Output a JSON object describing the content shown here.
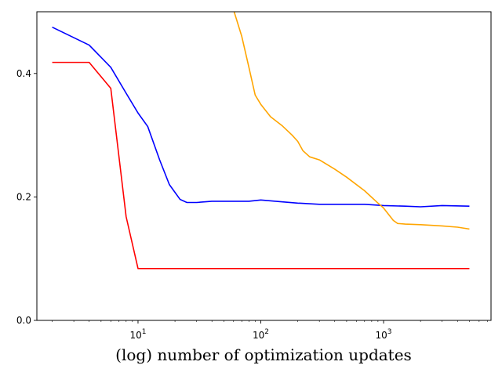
{
  "chart_data": {
    "type": "line",
    "title": "",
    "xlabel": "(log) number of optimization updates",
    "ylabel": "",
    "x_scale": "log",
    "xlim": [
      1.5,
      7500
    ],
    "ylim": [
      0,
      0.5
    ],
    "grid": false,
    "x_ticks": [
      {
        "value": 10,
        "base": "10",
        "exp": "1"
      },
      {
        "value": 100,
        "base": "10",
        "exp": "2"
      },
      {
        "value": 1000,
        "base": "10",
        "exp": "3"
      }
    ],
    "y_ticks": [
      {
        "value": 0.0,
        "label": "0.0"
      },
      {
        "value": 0.2,
        "label": "0.2"
      },
      {
        "value": 0.4,
        "label": "0.4"
      }
    ],
    "series": [
      {
        "color": "#ff0000",
        "points": [
          [
            2,
            0.418
          ],
          [
            4,
            0.418
          ],
          [
            6,
            0.376
          ],
          [
            8,
            0.168
          ],
          [
            10,
            0.084
          ],
          [
            20,
            0.084
          ],
          [
            100,
            0.084
          ],
          [
            1000,
            0.084
          ],
          [
            5000,
            0.084
          ]
        ]
      },
      {
        "color": "#0000ff",
        "points": [
          [
            2,
            0.475
          ],
          [
            4,
            0.446
          ],
          [
            6,
            0.41
          ],
          [
            8,
            0.368
          ],
          [
            10,
            0.336
          ],
          [
            12,
            0.314
          ],
          [
            15,
            0.26
          ],
          [
            18,
            0.22
          ],
          [
            22,
            0.196
          ],
          [
            25,
            0.191
          ],
          [
            30,
            0.191
          ],
          [
            40,
            0.193
          ],
          [
            60,
            0.193
          ],
          [
            80,
            0.193
          ],
          [
            100,
            0.195
          ],
          [
            150,
            0.192
          ],
          [
            200,
            0.19
          ],
          [
            300,
            0.188
          ],
          [
            500,
            0.188
          ],
          [
            700,
            0.188
          ],
          [
            1000,
            0.186
          ],
          [
            1500,
            0.185
          ],
          [
            2000,
            0.184
          ],
          [
            3000,
            0.186
          ],
          [
            5000,
            0.185
          ]
        ]
      },
      {
        "color": "#ffa500",
        "points": [
          [
            60,
            0.503
          ],
          [
            70,
            0.46
          ],
          [
            80,
            0.41
          ],
          [
            90,
            0.365
          ],
          [
            100,
            0.35
          ],
          [
            120,
            0.33
          ],
          [
            150,
            0.315
          ],
          [
            180,
            0.3
          ],
          [
            200,
            0.29
          ],
          [
            220,
            0.275
          ],
          [
            250,
            0.265
          ],
          [
            300,
            0.26
          ],
          [
            400,
            0.245
          ],
          [
            500,
            0.232
          ],
          [
            700,
            0.21
          ],
          [
            900,
            0.19
          ],
          [
            1000,
            0.182
          ],
          [
            1200,
            0.162
          ],
          [
            1300,
            0.157
          ],
          [
            1500,
            0.156
          ],
          [
            2000,
            0.155
          ],
          [
            3000,
            0.153
          ],
          [
            4000,
            0.151
          ],
          [
            5000,
            0.148
          ]
        ]
      }
    ]
  }
}
